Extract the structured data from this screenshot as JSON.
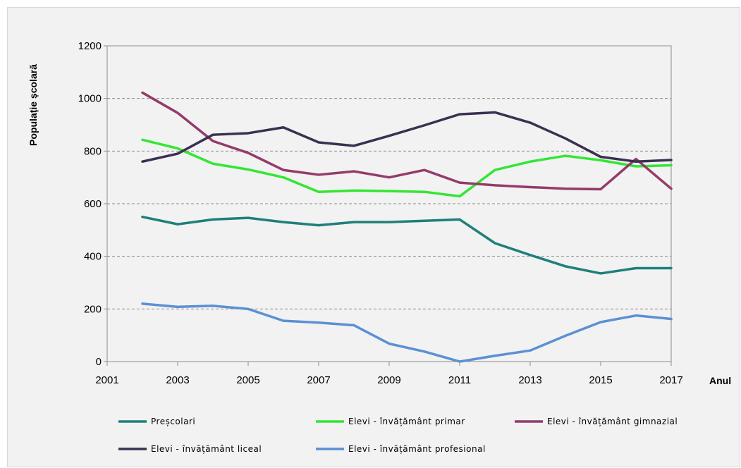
{
  "chart_data": {
    "type": "line",
    "title": "",
    "xlabel": "Anul",
    "ylabel": "Populație școlară",
    "xlim": [
      2001,
      2017
    ],
    "ylim": [
      0,
      1200
    ],
    "x_ticks": [
      2001,
      2003,
      2005,
      2007,
      2009,
      2011,
      2013,
      2015,
      2017
    ],
    "y_ticks": [
      0,
      200,
      400,
      600,
      800,
      1000,
      1200
    ],
    "grid": "horizontal dashed",
    "legend_position": "bottom",
    "x": [
      2002,
      2003,
      2004,
      2005,
      2006,
      2007,
      2008,
      2009,
      2010,
      2011,
      2012,
      2013,
      2014,
      2015,
      2016,
      2017
    ],
    "series": [
      {
        "name": "Preșcolari",
        "color": "#1f7f7a",
        "values": [
          550,
          522,
          540,
          546,
          530,
          518,
          530,
          530,
          535,
          540,
          450,
          405,
          362,
          335,
          355,
          355
        ]
      },
      {
        "name": "Elevi - învățământ primar",
        "color": "#33e633",
        "values": [
          843,
          810,
          752,
          730,
          700,
          645,
          650,
          648,
          645,
          628,
          728,
          760,
          782,
          765,
          742,
          746
        ]
      },
      {
        "name": "Elevi - învățământ gimnazial",
        "color": "#943b6a",
        "values": [
          1022,
          945,
          838,
          793,
          728,
          710,
          723,
          700,
          728,
          680,
          670,
          663,
          657,
          655,
          770,
          657
        ]
      },
      {
        "name": "Elevi - învățământ liceal",
        "color": "#3b3050",
        "values": [
          760,
          790,
          862,
          868,
          890,
          833,
          820,
          858,
          898,
          940,
          947,
          908,
          848,
          778,
          760,
          766
        ]
      },
      {
        "name": "Elevi - învățământ profesional",
        "color": "#5b90d4",
        "values": [
          220,
          208,
          212,
          200,
          155,
          148,
          138,
          68,
          38,
          0,
          22,
          42,
          98,
          150,
          175,
          162
        ]
      }
    ]
  }
}
